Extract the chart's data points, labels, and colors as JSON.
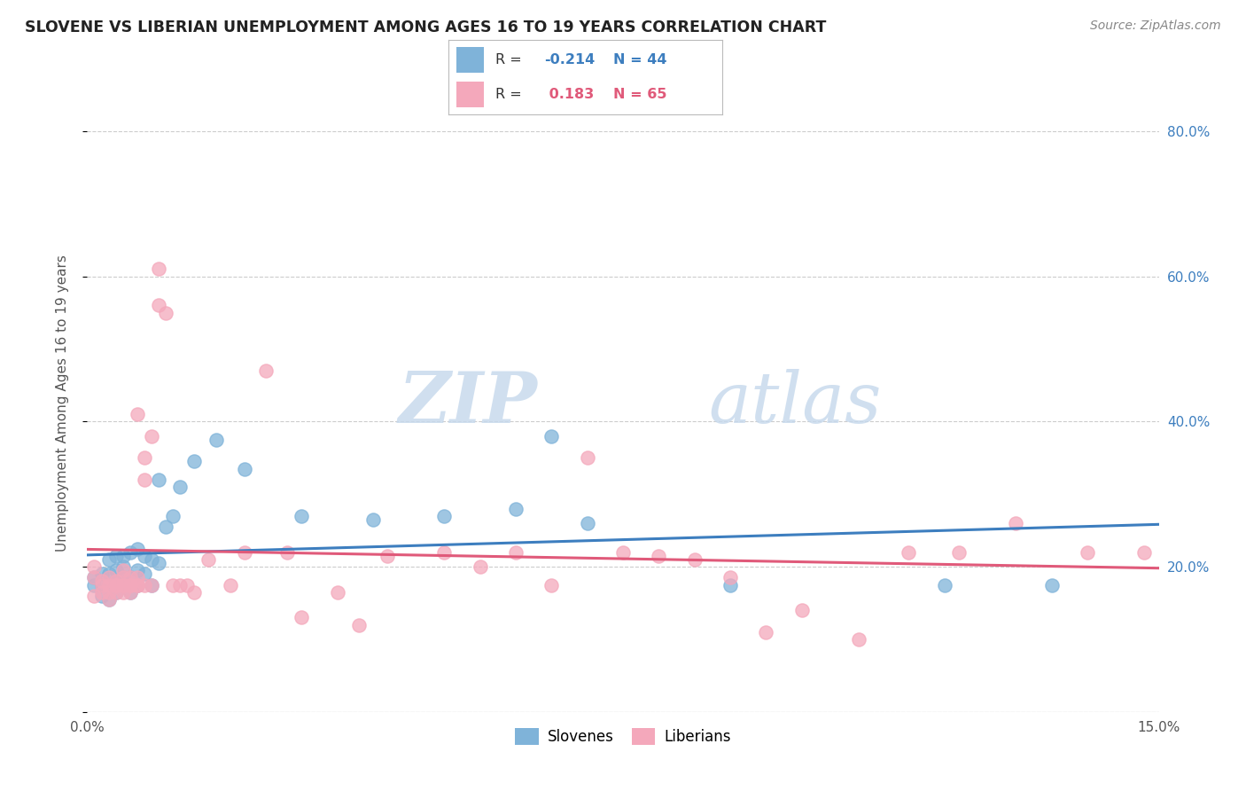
{
  "title": "SLOVENE VS LIBERIAN UNEMPLOYMENT AMONG AGES 16 TO 19 YEARS CORRELATION CHART",
  "source": "Source: ZipAtlas.com",
  "ylabel": "Unemployment Among Ages 16 to 19 years",
  "xlim": [
    0.0,
    0.15
  ],
  "ylim": [
    0.0,
    0.85
  ],
  "slovene_color": "#7fb3d9",
  "liberian_color": "#f4a8bb",
  "slovene_line_color": "#3d7ebf",
  "liberian_line_color": "#e05a7a",
  "background_color": "#ffffff",
  "grid_color": "#cccccc",
  "watermark_zip": "ZIP",
  "watermark_atlas": "atlas",
  "slovene_x": [
    0.001,
    0.001,
    0.002,
    0.002,
    0.002,
    0.003,
    0.003,
    0.003,
    0.003,
    0.004,
    0.004,
    0.004,
    0.004,
    0.005,
    0.005,
    0.005,
    0.005,
    0.006,
    0.006,
    0.006,
    0.007,
    0.007,
    0.007,
    0.008,
    0.008,
    0.009,
    0.009,
    0.01,
    0.01,
    0.011,
    0.012,
    0.013,
    0.015,
    0.018,
    0.022,
    0.03,
    0.04,
    0.05,
    0.06,
    0.065,
    0.07,
    0.09,
    0.12,
    0.135
  ],
  "slovene_y": [
    0.175,
    0.185,
    0.16,
    0.175,
    0.19,
    0.155,
    0.175,
    0.19,
    0.21,
    0.165,
    0.18,
    0.195,
    0.215,
    0.175,
    0.185,
    0.2,
    0.215,
    0.165,
    0.185,
    0.22,
    0.175,
    0.195,
    0.225,
    0.19,
    0.215,
    0.175,
    0.21,
    0.205,
    0.32,
    0.255,
    0.27,
    0.31,
    0.345,
    0.375,
    0.335,
    0.27,
    0.265,
    0.27,
    0.28,
    0.38,
    0.26,
    0.175,
    0.175,
    0.175
  ],
  "liberian_x": [
    0.001,
    0.001,
    0.001,
    0.002,
    0.002,
    0.002,
    0.003,
    0.003,
    0.003,
    0.003,
    0.004,
    0.004,
    0.004,
    0.004,
    0.005,
    0.005,
    0.005,
    0.005,
    0.005,
    0.006,
    0.006,
    0.006,
    0.006,
    0.007,
    0.007,
    0.007,
    0.007,
    0.008,
    0.008,
    0.008,
    0.009,
    0.009,
    0.01,
    0.01,
    0.011,
    0.012,
    0.013,
    0.014,
    0.015,
    0.017,
    0.02,
    0.022,
    0.025,
    0.028,
    0.03,
    0.035,
    0.038,
    0.042,
    0.05,
    0.055,
    0.06,
    0.065,
    0.07,
    0.075,
    0.08,
    0.085,
    0.09,
    0.095,
    0.1,
    0.108,
    0.115,
    0.122,
    0.13,
    0.14,
    0.148
  ],
  "liberian_y": [
    0.2,
    0.185,
    0.16,
    0.18,
    0.175,
    0.165,
    0.185,
    0.175,
    0.165,
    0.155,
    0.175,
    0.175,
    0.165,
    0.18,
    0.175,
    0.165,
    0.185,
    0.175,
    0.195,
    0.185,
    0.175,
    0.175,
    0.165,
    0.175,
    0.185,
    0.175,
    0.41,
    0.32,
    0.35,
    0.175,
    0.175,
    0.38,
    0.56,
    0.61,
    0.55,
    0.175,
    0.175,
    0.175,
    0.165,
    0.21,
    0.175,
    0.22,
    0.47,
    0.22,
    0.13,
    0.165,
    0.12,
    0.215,
    0.22,
    0.2,
    0.22,
    0.175,
    0.35,
    0.22,
    0.215,
    0.21,
    0.185,
    0.11,
    0.14,
    0.1,
    0.22,
    0.22,
    0.26,
    0.22,
    0.22
  ]
}
